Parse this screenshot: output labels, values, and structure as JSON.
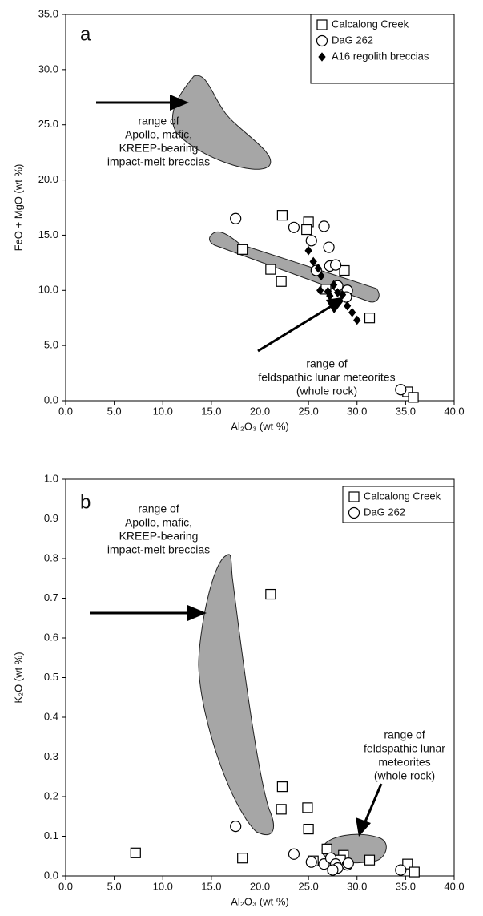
{
  "chart_data": [
    {
      "type": "scatter",
      "panel_label": "a",
      "x_label": "Al₂O₃ (wt %)",
      "y_label": "FeO + MgO (wt %)",
      "xlim": [
        0,
        40
      ],
      "ylim": [
        0,
        35
      ],
      "xticks": [
        {
          "value": 0,
          "label": "0.0"
        },
        {
          "value": 5,
          "label": "5.0"
        },
        {
          "value": 10,
          "label": "10.0"
        },
        {
          "value": 15,
          "label": "15.0"
        },
        {
          "value": 20,
          "label": "20.0"
        },
        {
          "value": 25,
          "label": "25.0"
        },
        {
          "value": 30,
          "label": "30.0"
        },
        {
          "value": 35,
          "label": "35.0"
        },
        {
          "value": 40,
          "label": "40.0"
        }
      ],
      "yticks": [
        {
          "value": 0,
          "label": "0.0"
        },
        {
          "value": 5,
          "label": "5.0"
        },
        {
          "value": 10,
          "label": "10.0"
        },
        {
          "value": 15,
          "label": "15.0"
        },
        {
          "value": 20,
          "label": "20.0"
        },
        {
          "value": 25,
          "label": "25.0"
        },
        {
          "value": 30,
          "label": "30.0"
        },
        {
          "value": 35,
          "label": "35.0"
        }
      ],
      "legend": "upper right",
      "annotations": [
        [
          "range of",
          "Apollo, mafic,",
          "KREEP-bearing",
          "impact-melt breccias"
        ],
        [
          "range of",
          "feldspathic lunar meteorites",
          "(whole rock)"
        ]
      ],
      "series": [
        {
          "name": "Calcalong Creek",
          "marker": "square",
          "color": "#000000",
          "x": [
            22.3,
            25,
            24.8,
            18.2,
            21.1,
            22.2,
            26.8,
            28.7,
            31.3,
            35.2,
            35.8
          ],
          "values": [
            16.8,
            16.2,
            15.5,
            13.7,
            11.9,
            10.8,
            10.1,
            11.8,
            7.5,
            0.8,
            0.3
          ]
        },
        {
          "name": "DaG 262",
          "marker": "circle",
          "color": "#000000",
          "x": [
            17.5,
            23.5,
            25.3,
            26.6,
            27.1,
            27.2,
            27.8,
            25.8,
            28,
            29,
            28.9,
            34.5
          ],
          "values": [
            16.5,
            15.7,
            14.5,
            15.8,
            13.9,
            12.2,
            12.3,
            11.8,
            10.4,
            10,
            9.4,
            1
          ]
        },
        {
          "name": "A16 regolith breccias",
          "marker": "diamond",
          "color": "#000000",
          "x": [
            25,
            25.5,
            26,
            26.3,
            26.2,
            27,
            27.6,
            28,
            28.5,
            29,
            29.5,
            30,
            27.2
          ],
          "values": [
            13.6,
            12.6,
            12,
            11.3,
            10,
            9.9,
            10.5,
            9.8,
            9.6,
            8.6,
            8,
            7.3,
            9.5
          ]
        }
      ]
    },
    {
      "type": "scatter",
      "panel_label": "b",
      "x_label": "Al₂O₃ (wt %)",
      "y_label": "K₂O (wt %)",
      "xlim": [
        0,
        40
      ],
      "ylim": [
        0,
        1
      ],
      "xticks": [
        {
          "value": 0,
          "label": "0.0"
        },
        {
          "value": 5,
          "label": "5.0"
        },
        {
          "value": 10,
          "label": "10.0"
        },
        {
          "value": 15,
          "label": "15.0"
        },
        {
          "value": 20,
          "label": "20.0"
        },
        {
          "value": 25,
          "label": "25.0"
        },
        {
          "value": 30,
          "label": "30.0"
        },
        {
          "value": 35,
          "label": "35.0"
        },
        {
          "value": 40,
          "label": "40.0"
        }
      ],
      "yticks": [
        {
          "value": 0,
          "label": "0.0"
        },
        0.1,
        0.2,
        0.3,
        0.4,
        0.5,
        0.6,
        0.7,
        0.8,
        0.9,
        {
          "value": 1,
          "label": "1.0"
        }
      ],
      "legend": "upper right",
      "annotations": [
        [
          "range of",
          "Apollo, mafic,",
          "KREEP-bearing",
          "impact-melt breccias"
        ],
        [
          "range of",
          "feldspathic lunar",
          "meteorites",
          "(whole rock)"
        ]
      ],
      "series": [
        {
          "name": "Calcalong Creek",
          "marker": "square",
          "color": "#000000",
          "x": [
            7.2,
            18.2,
            21.1,
            22.3,
            22.2,
            24.9,
            25,
            25.5,
            26.9,
            28.6,
            28.3,
            31.3,
            35.2,
            35.9,
            27.5
          ],
          "values": [
            0.058,
            0.045,
            0.71,
            0.225,
            0.168,
            0.172,
            0.118,
            0.038,
            0.068,
            0.052,
            0.04,
            0.04,
            0.03,
            0.01,
            0.02
          ]
        },
        {
          "name": "DaG 262",
          "marker": "circle",
          "color": "#000000",
          "x": [
            17.5,
            23.5,
            25.3,
            26.6,
            27.3,
            27.8,
            28,
            29,
            29.1,
            34.5,
            27.5
          ],
          "values": [
            0.125,
            0.055,
            0.035,
            0.03,
            0.045,
            0.03,
            0.02,
            0.028,
            0.032,
            0.015,
            0.015
          ]
        }
      ]
    }
  ]
}
